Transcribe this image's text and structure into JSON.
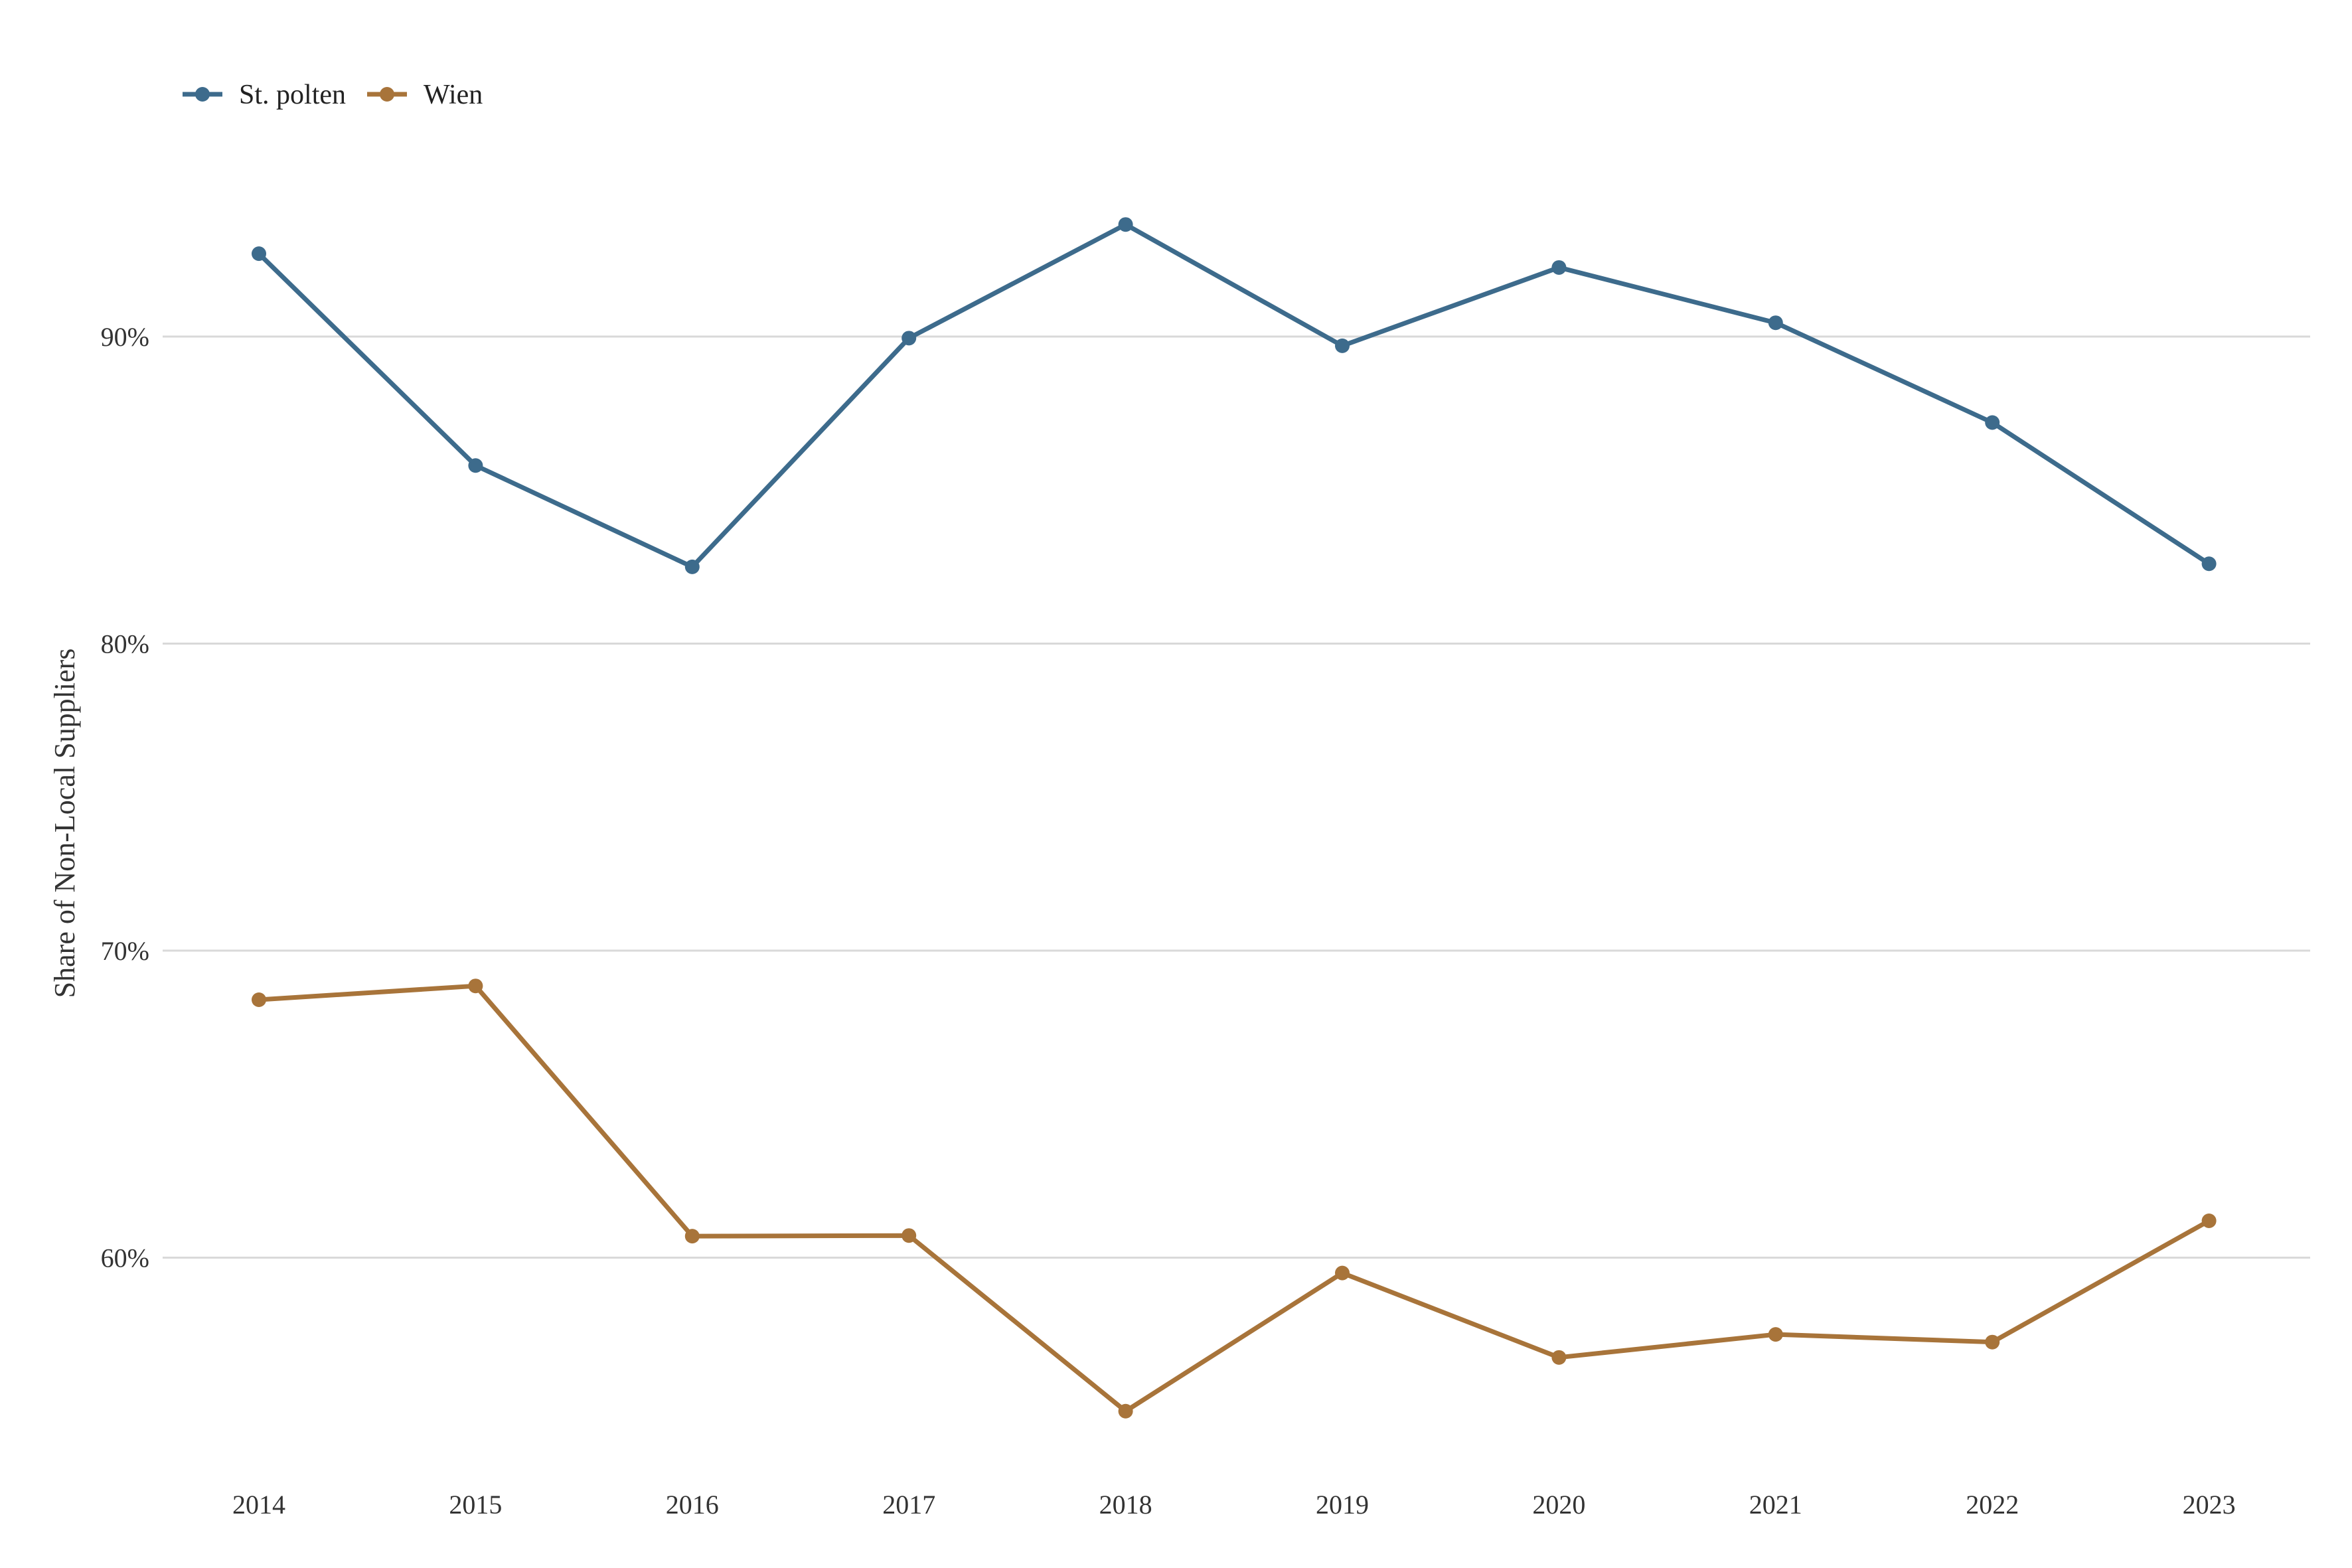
{
  "chart_data": {
    "type": "line",
    "title": "",
    "xlabel": "",
    "ylabel": "Share of Non-Local Suppliers",
    "x": [
      "2014",
      "2015",
      "2016",
      "2017",
      "2018",
      "2019",
      "2020",
      "2021",
      "2022",
      "2023"
    ],
    "ylim": [
      53,
      97
    ],
    "yticks": [
      60,
      70,
      80,
      90
    ],
    "ytick_labels": [
      "60%",
      "70%",
      "80%",
      "90%"
    ],
    "grid": "horizontal",
    "legend_position": "top-left",
    "series": [
      {
        "name": "St. polten",
        "color": "#3d6b8c",
        "values": [
          92.7,
          85.8,
          82.5,
          89.95,
          93.65,
          89.7,
          92.25,
          90.45,
          87.2,
          82.6
        ]
      },
      {
        "name": "Wien",
        "color": "#a8743a",
        "values": [
          68.4,
          68.85,
          60.7,
          60.72,
          55.0,
          59.5,
          56.75,
          57.5,
          57.25,
          61.2
        ]
      }
    ]
  }
}
